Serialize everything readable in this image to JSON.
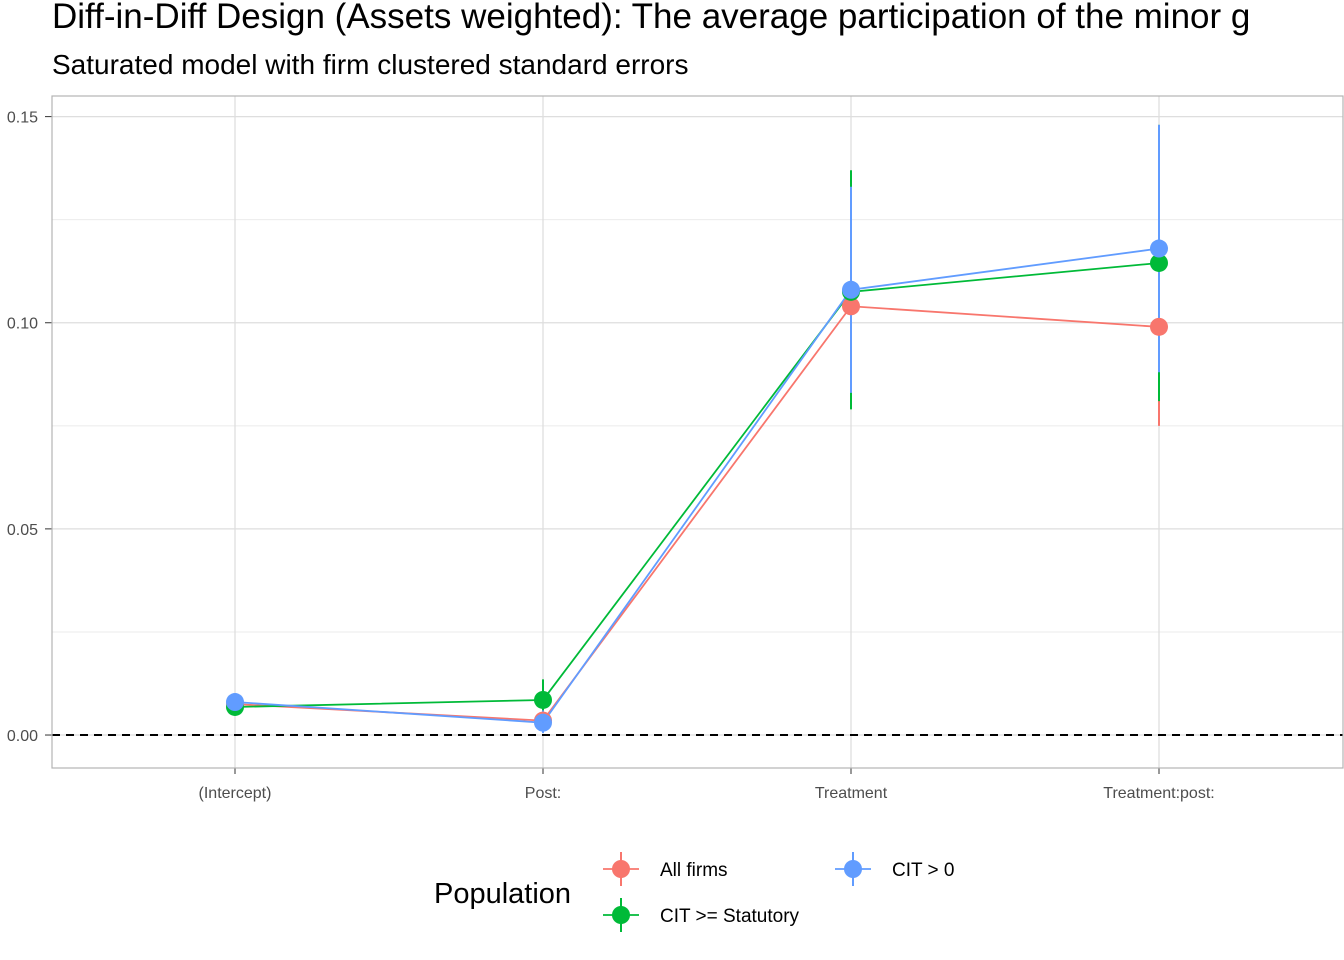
{
  "chart_data": {
    "type": "scatter",
    "title": "Diff-in-Diff Design (Assets weighted): The average participation of the minor g",
    "subtitle": "Saturated model with firm clustered standard errors",
    "xlabel": "",
    "ylabel": "",
    "categories": [
      "(Intercept)",
      "Post:",
      "Treatment",
      "Treatment:post:"
    ],
    "ylim": [
      -0.008,
      0.155
    ],
    "yticks": [
      0.0,
      0.05,
      0.1,
      0.15
    ],
    "ytick_labels": [
      "0.00",
      "0.05",
      "0.10",
      "0.15"
    ],
    "reference_line": 0,
    "grid": true,
    "legend": {
      "title": "Population",
      "position": "bottom"
    },
    "series": [
      {
        "name": "All firms",
        "color": "#F8766D",
        "values": [
          0.0075,
          0.0035,
          0.104,
          0.099
        ],
        "lower": [
          0.0065,
          0.001,
          0.084,
          0.075
        ],
        "upper": [
          0.0085,
          0.006,
          0.124,
          0.123
        ]
      },
      {
        "name": "CIT >= Statutory",
        "color": "#00BA38",
        "values": [
          0.0068,
          0.0085,
          0.1075,
          0.1145
        ],
        "lower": [
          0.0058,
          0.0035,
          0.079,
          0.081
        ],
        "upper": [
          0.0078,
          0.0135,
          0.137,
          0.148
        ]
      },
      {
        "name": "CIT > 0",
        "color": "#619CFF",
        "values": [
          0.008,
          0.003,
          0.108,
          0.118
        ],
        "lower": [
          0.007,
          0.0005,
          0.083,
          0.088
        ],
        "upper": [
          0.009,
          0.006,
          0.133,
          0.148
        ]
      }
    ]
  }
}
